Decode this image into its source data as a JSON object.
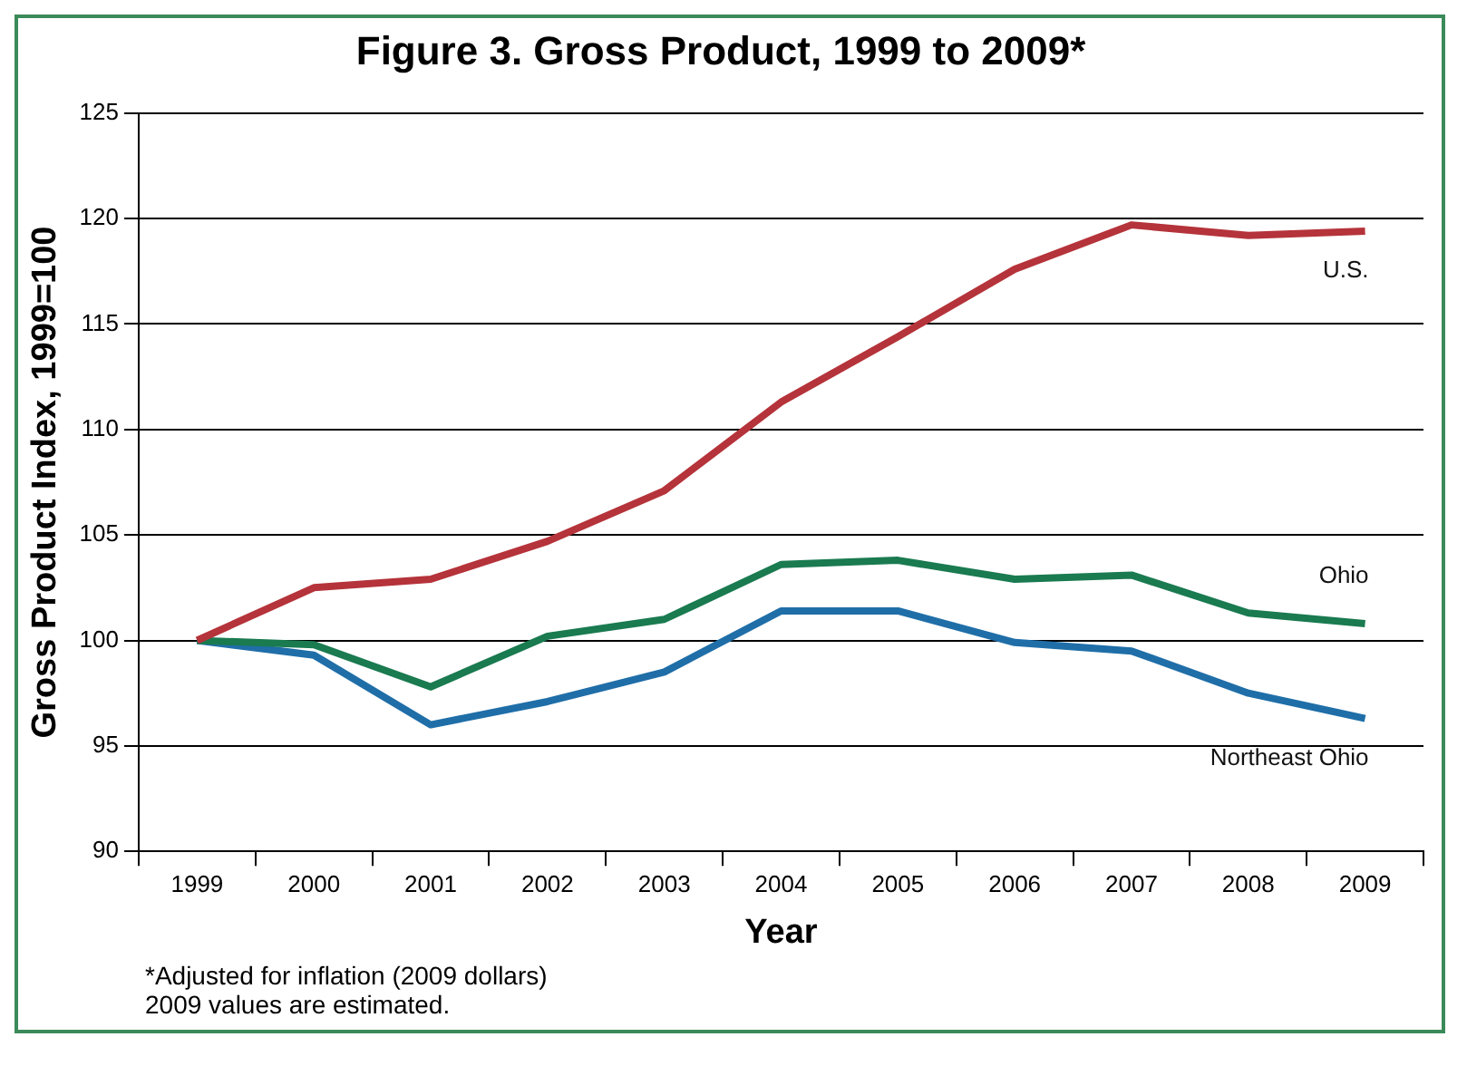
{
  "chart_data": {
    "type": "line",
    "title": "Figure 3. Gross Product, 1999 to 2009*",
    "xlabel": "Year",
    "ylabel": "Gross Product Index, 1999=100",
    "categories": [
      "1999",
      "2000",
      "2001",
      "2002",
      "2003",
      "2004",
      "2005",
      "2006",
      "2007",
      "2008",
      "2009"
    ],
    "series": [
      {
        "name": "U.S.",
        "color": "#b5333a",
        "values": [
          100,
          102.5,
          102.9,
          104.7,
          107.1,
          111.3,
          114.4,
          117.6,
          119.7,
          119.2,
          119.4
        ]
      },
      {
        "name": "Ohio",
        "color": "#1a7a50",
        "values": [
          100,
          99.8,
          97.8,
          100.2,
          101.0,
          103.6,
          103.8,
          102.9,
          103.1,
          101.3,
          100.8
        ]
      },
      {
        "name": "Northeast Ohio",
        "color": "#1f6ea8",
        "values": [
          100,
          99.3,
          96.0,
          97.1,
          98.5,
          101.4,
          101.4,
          99.9,
          99.5,
          97.5,
          96.3
        ]
      }
    ],
    "ylim": [
      90,
      125
    ],
    "yticks": [
      90,
      95,
      100,
      105,
      110,
      115,
      120,
      125
    ],
    "grid": "y",
    "legend": false,
    "marker": "none",
    "line_style": "solid",
    "annotations": [
      "*Adjusted for inflation (2009 dollars)",
      "2009 values are estimated."
    ]
  }
}
